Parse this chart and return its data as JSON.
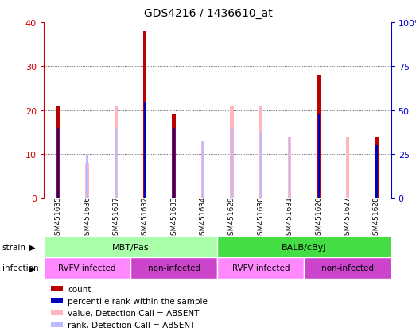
{
  "title": "GDS4216 / 1436610_at",
  "samples": [
    "GSM451635",
    "GSM451636",
    "GSM451637",
    "GSM451632",
    "GSM451633",
    "GSM451634",
    "GSM451629",
    "GSM451630",
    "GSM451631",
    "GSM451626",
    "GSM451627",
    "GSM451628"
  ],
  "count": [
    21,
    0,
    0,
    38,
    19,
    0,
    0,
    0,
    0,
    28,
    0,
    14
  ],
  "percentile_rank": [
    16,
    0,
    0,
    22,
    16,
    0,
    0,
    0,
    0,
    19,
    0,
    12
  ],
  "absent_value": [
    0,
    8,
    21,
    0,
    0,
    13,
    21,
    21,
    14,
    0,
    14,
    0
  ],
  "absent_rank": [
    0,
    10,
    16,
    0,
    0,
    13,
    16,
    15,
    14,
    0,
    0,
    0
  ],
  "ylim_left": [
    0,
    40
  ],
  "ylim_right": [
    0,
    100
  ],
  "yticks_left": [
    0,
    10,
    20,
    30,
    40
  ],
  "yticks_right": [
    0,
    25,
    50,
    75,
    100
  ],
  "yticklabels_left": [
    "0",
    "10",
    "20",
    "30",
    "40"
  ],
  "yticklabels_right": [
    "0",
    "25",
    "50",
    "75",
    "100%"
  ],
  "strain_groups": [
    {
      "label": "MBT/Pas",
      "start": 0,
      "end": 6,
      "color": "#AAFFAA"
    },
    {
      "label": "BALB/cByJ",
      "start": 6,
      "end": 12,
      "color": "#44DD44"
    }
  ],
  "infection_groups": [
    {
      "label": "RVFV infected",
      "start": 0,
      "end": 3,
      "color": "#FF88FF"
    },
    {
      "label": "non-infected",
      "start": 3,
      "end": 6,
      "color": "#CC44CC"
    },
    {
      "label": "RVFV infected",
      "start": 6,
      "end": 9,
      "color": "#FF88FF"
    },
    {
      "label": "non-infected",
      "start": 9,
      "end": 12,
      "color": "#CC44CC"
    }
  ],
  "count_color": "#BB0000",
  "rank_color": "#0000BB",
  "absent_value_color": "#FFB6C1",
  "absent_rank_color": "#BBBBFF",
  "legend_items": [
    {
      "label": "count",
      "color": "#BB0000"
    },
    {
      "label": "percentile rank within the sample",
      "color": "#0000BB"
    },
    {
      "label": "value, Detection Call = ABSENT",
      "color": "#FFB6C1"
    },
    {
      "label": "rank, Detection Call = ABSENT",
      "color": "#BBBBFF"
    }
  ],
  "background_color": "#FFFFFF",
  "tick_color_left": "#CC0000",
  "tick_color_right": "#0000CC",
  "bar_width": 0.12,
  "rank_bar_width": 0.06
}
